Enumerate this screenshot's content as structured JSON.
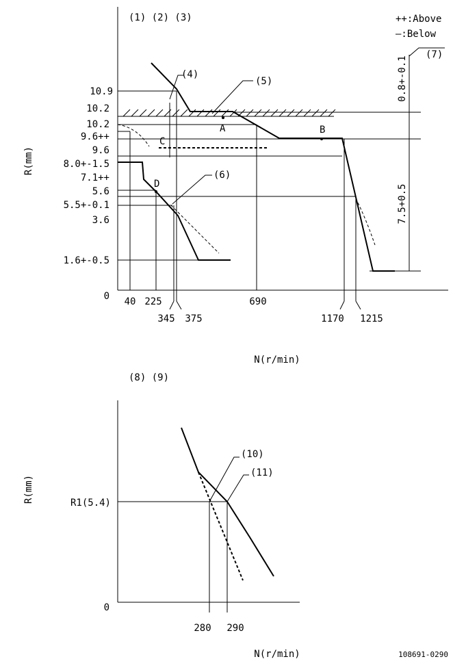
{
  "top": {
    "heading": "(1) (2) (3)",
    "legend_above": "++:Above",
    "legend_below": "—:Below",
    "y_axis_label": "R(mm)",
    "x_axis_label": "N(r/min)",
    "callouts": [
      "(4)",
      "(5)",
      "(6)",
      "(7)"
    ],
    "points": [
      "A",
      "B",
      "C",
      "D"
    ],
    "y_labels": [
      "10.9",
      "10.2",
      "10.2",
      "9.6++",
      "9.6",
      "8.0+-1.5",
      "7.1++",
      "5.6",
      "5.5+-0.1",
      "3.6",
      "1.6+-0.5",
      "0"
    ],
    "x_labels": [
      "40",
      "225",
      "345",
      "375",
      "690",
      "1170",
      "1215"
    ],
    "dimensions": [
      "0.8+-0.1",
      "7.5+0.5"
    ]
  },
  "bottom": {
    "heading": "(8) (9)",
    "y_axis_label": "R(mm)",
    "x_axis_label": "N(r/min)",
    "r1_label": "R1(5.4)",
    "callouts": [
      "(10)",
      "(11)"
    ],
    "origin": "0",
    "x_labels": [
      "280",
      "290"
    ]
  },
  "footer": {
    "code": "108691-0290"
  }
}
